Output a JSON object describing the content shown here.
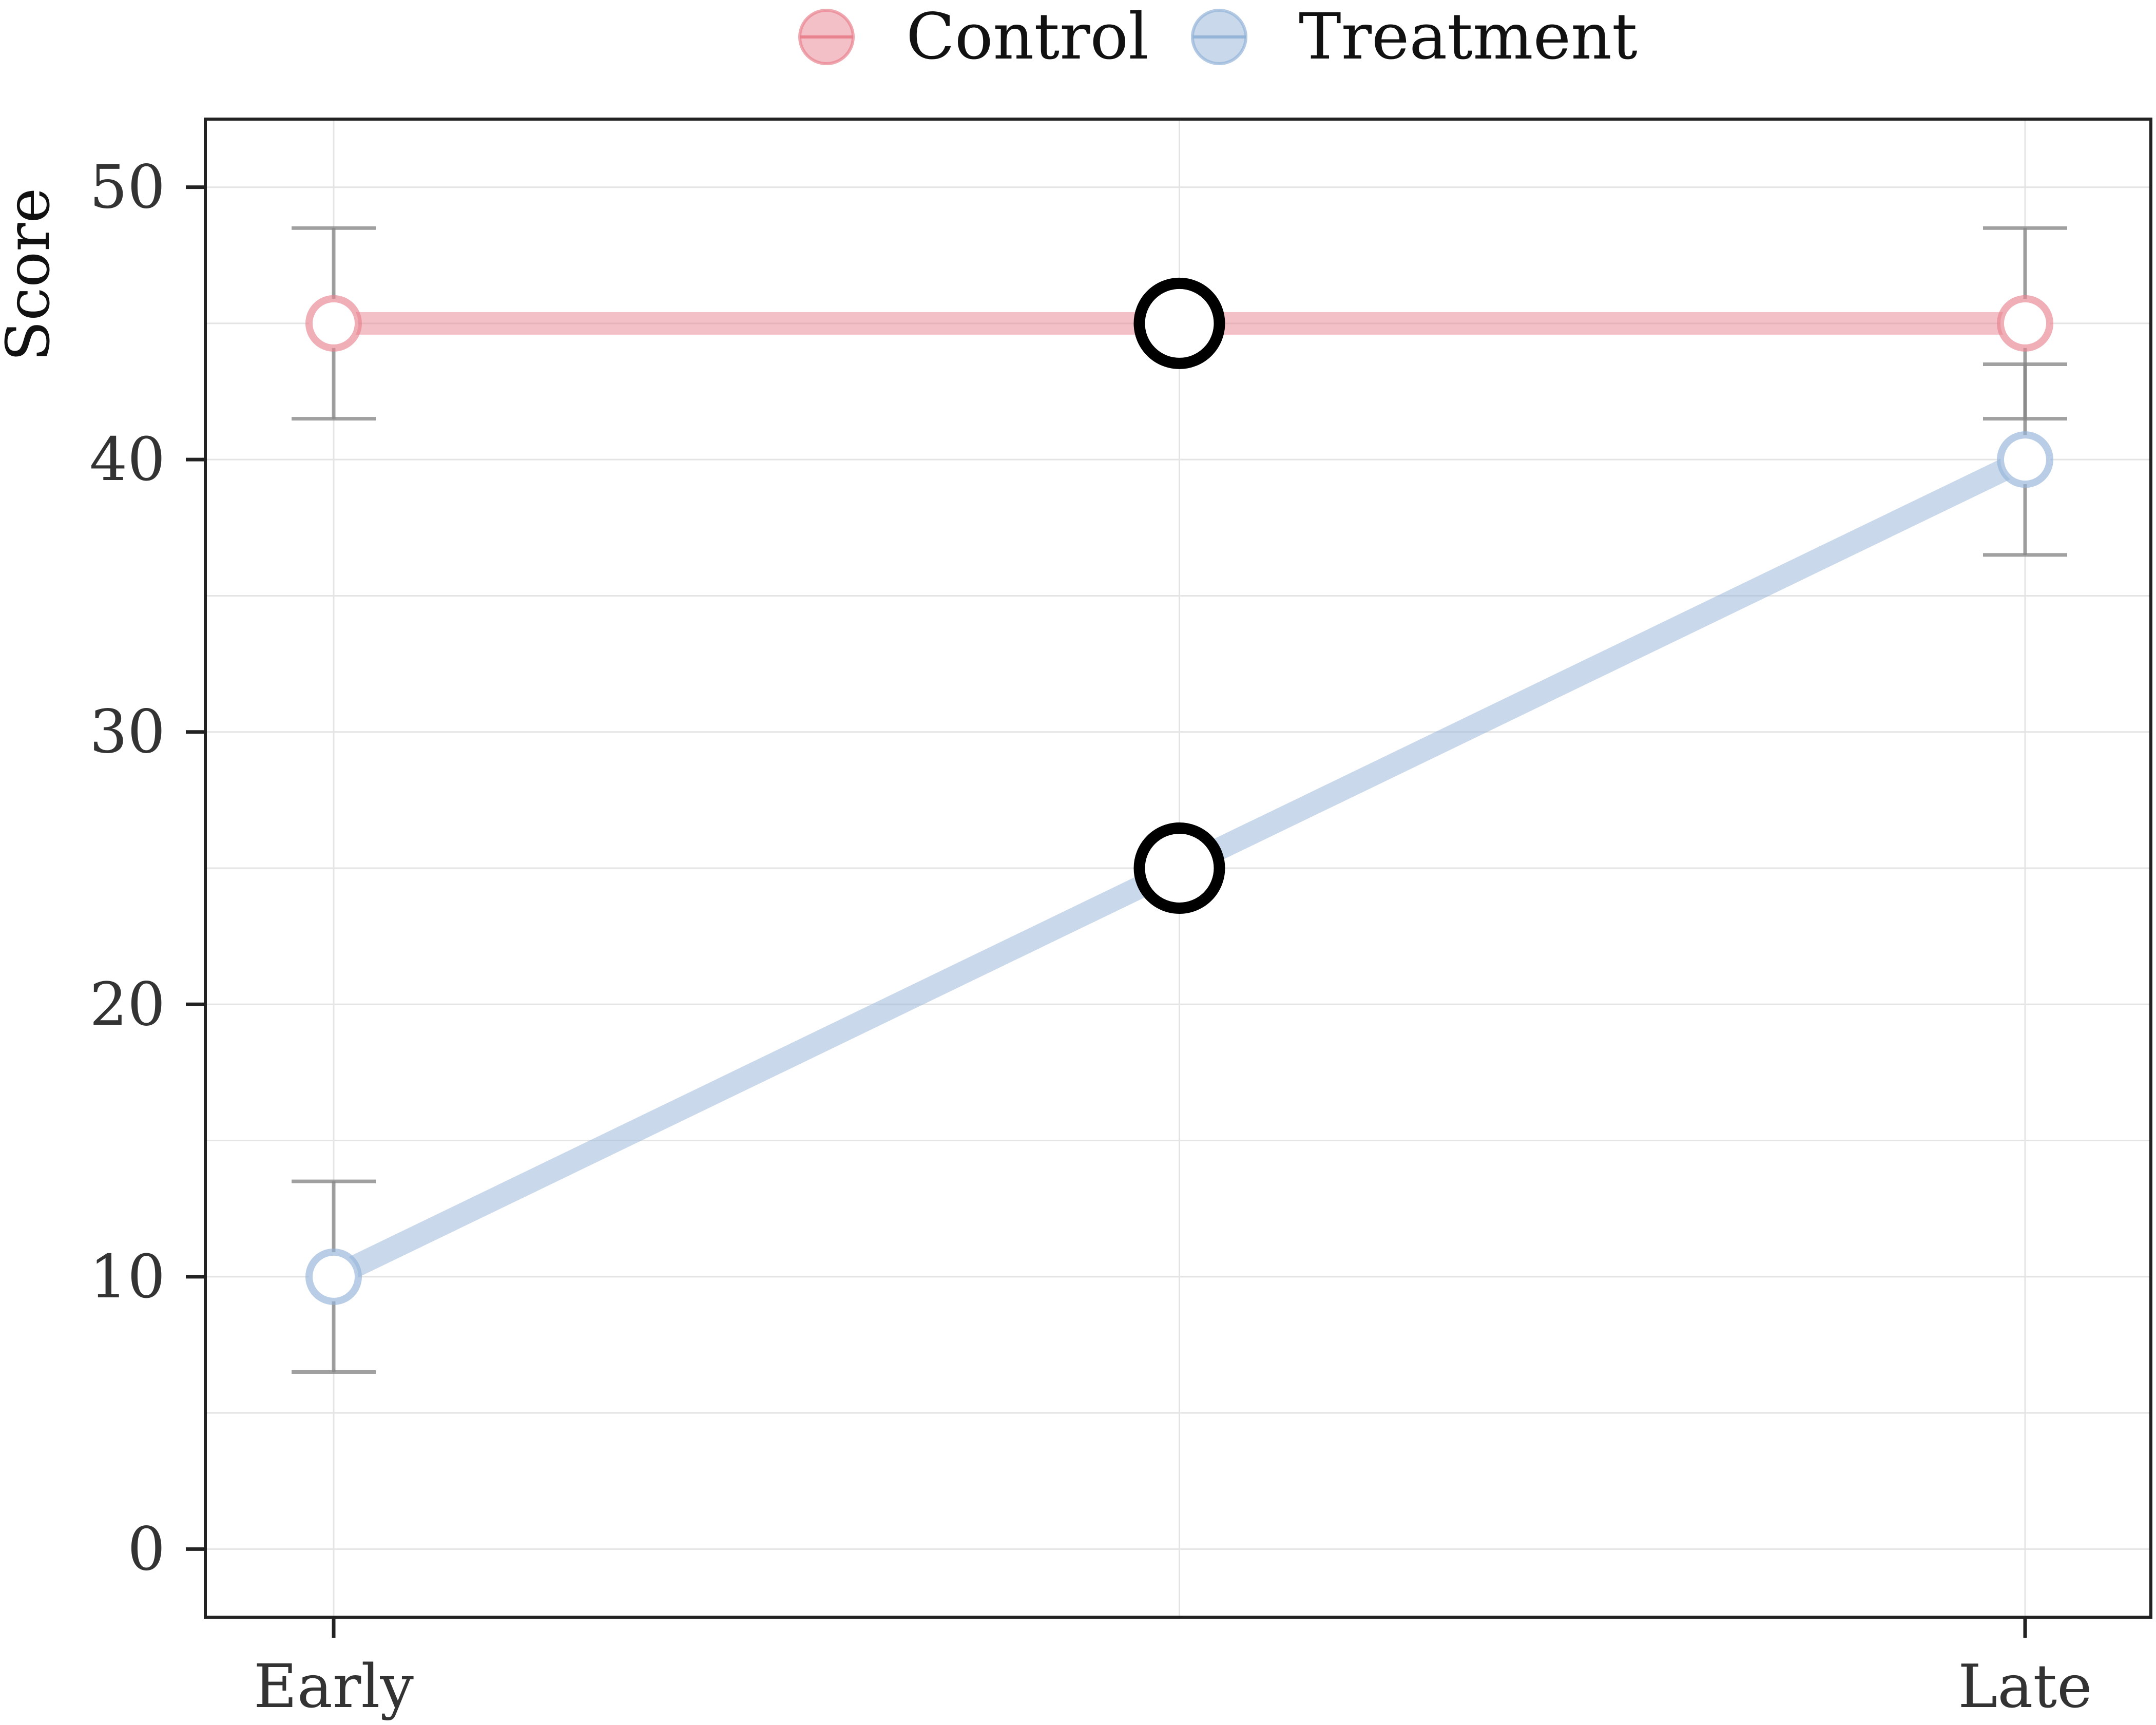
{
  "chart_data": {
    "type": "line",
    "title": "",
    "xlabel": "",
    "ylabel": "Score",
    "categories": [
      "Early",
      "Late"
    ],
    "x_range": [
      0,
      2
    ],
    "ylim": [
      -2.5,
      52.5
    ],
    "y_ticks": [
      0,
      10,
      20,
      30,
      40,
      50
    ],
    "grid": true,
    "legend_position": "top",
    "series": [
      {
        "name": "Control",
        "color": "#e8828f",
        "x": [
          0,
          2
        ],
        "values": [
          45,
          45
        ],
        "error": [
          3.5,
          3.5
        ]
      },
      {
        "name": "Treatment",
        "color": "#94b4d8",
        "x": [
          0,
          2
        ],
        "values": [
          10,
          40
        ],
        "error": [
          3.5,
          3.5
        ]
      }
    ],
    "highlights": [
      {
        "series": "Control",
        "x": 1,
        "value": 45
      },
      {
        "series": "Treatment",
        "x": 1,
        "value": 25
      }
    ]
  }
}
